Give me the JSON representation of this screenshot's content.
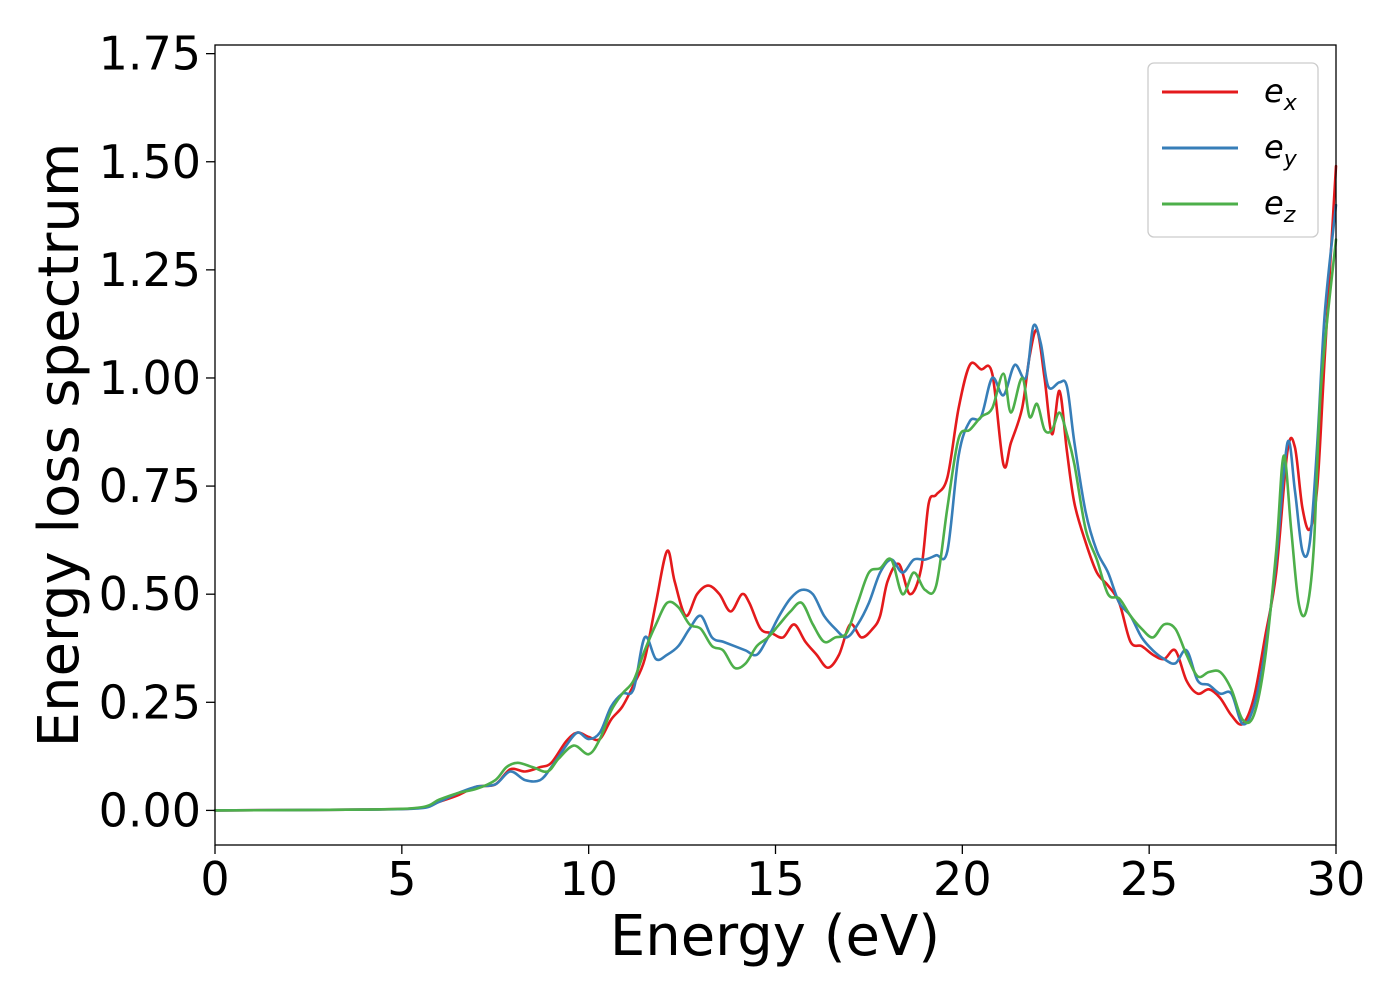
{
  "chart_data": {
    "type": "line",
    "xlabel": "Energy (eV)",
    "ylabel": "Energy loss spectrum",
    "xlim": [
      0,
      30
    ],
    "ylim": [
      -0.08,
      1.77
    ],
    "xticks": [
      0,
      5,
      10,
      15,
      20,
      25,
      30
    ],
    "xtick_labels": [
      "0",
      "5",
      "10",
      "15",
      "20",
      "25",
      "30"
    ],
    "yticks": [
      0.0,
      0.25,
      0.5,
      0.75,
      1.0,
      1.25,
      1.5,
      1.75
    ],
    "ytick_labels": [
      "0.00",
      "0.25",
      "0.50",
      "0.75",
      "1.00",
      "1.25",
      "1.50",
      "1.75"
    ],
    "grid": false,
    "legend_position": "top-right",
    "series": [
      {
        "name": "e_x",
        "legend_base": "e",
        "legend_sub": "x",
        "color": "#e41a1c",
        "x": [
          0,
          4,
          5.5,
          6.0,
          6.5,
          7.0,
          7.5,
          7.9,
          8.3,
          8.7,
          9.0,
          9.4,
          9.7,
          10.0,
          10.3,
          10.6,
          10.9,
          11.2,
          11.5,
          11.8,
          12.1,
          12.3,
          12.6,
          12.9,
          13.2,
          13.5,
          13.8,
          14.1,
          14.3,
          14.6,
          14.9,
          15.2,
          15.5,
          15.8,
          16.1,
          16.4,
          16.7,
          17.0,
          17.3,
          17.6,
          17.8,
          18.0,
          18.3,
          18.6,
          18.9,
          19.1,
          19.3,
          19.6,
          19.9,
          20.2,
          20.5,
          20.8,
          21.1,
          21.3,
          21.6,
          21.8,
          22.0,
          22.2,
          22.4,
          22.6,
          22.8,
          23.0,
          23.3,
          23.6,
          23.9,
          24.2,
          24.5,
          24.8,
          25.1,
          25.4,
          25.7,
          26.0,
          26.3,
          26.6,
          26.9,
          27.2,
          27.5,
          27.8,
          28.1,
          28.4,
          28.7,
          28.9,
          29.1,
          29.3,
          29.5,
          29.7,
          30.0
        ],
        "y": [
          0,
          0.002,
          0.006,
          0.02,
          0.035,
          0.055,
          0.06,
          0.095,
          0.09,
          0.1,
          0.11,
          0.16,
          0.18,
          0.17,
          0.165,
          0.21,
          0.24,
          0.29,
          0.35,
          0.48,
          0.6,
          0.53,
          0.45,
          0.5,
          0.52,
          0.5,
          0.46,
          0.5,
          0.48,
          0.42,
          0.41,
          0.4,
          0.43,
          0.39,
          0.36,
          0.33,
          0.36,
          0.43,
          0.4,
          0.42,
          0.45,
          0.53,
          0.57,
          0.5,
          0.56,
          0.71,
          0.73,
          0.77,
          0.93,
          1.03,
          1.02,
          1.01,
          0.8,
          0.85,
          0.93,
          1.05,
          1.11,
          1.0,
          0.87,
          0.97,
          0.83,
          0.71,
          0.62,
          0.55,
          0.52,
          0.48,
          0.39,
          0.38,
          0.36,
          0.35,
          0.37,
          0.3,
          0.27,
          0.28,
          0.26,
          0.22,
          0.2,
          0.26,
          0.4,
          0.55,
          0.83,
          0.84,
          0.7,
          0.65,
          0.75,
          1.05,
          1.49
        ]
      },
      {
        "name": "e_y",
        "legend_base": "e",
        "legend_sub": "y",
        "color": "#377eb8",
        "x": [
          0,
          4,
          5.5,
          6.0,
          6.5,
          7.0,
          7.5,
          7.9,
          8.3,
          8.7,
          9.0,
          9.4,
          9.7,
          10.0,
          10.3,
          10.6,
          10.9,
          11.2,
          11.5,
          11.8,
          12.1,
          12.4,
          12.7,
          13.0,
          13.3,
          13.6,
          13.9,
          14.2,
          14.5,
          14.8,
          15.1,
          15.4,
          15.7,
          16.0,
          16.3,
          16.6,
          16.9,
          17.2,
          17.5,
          17.8,
          18.1,
          18.4,
          18.7,
          19.0,
          19.3,
          19.6,
          19.9,
          20.2,
          20.5,
          20.8,
          21.1,
          21.4,
          21.7,
          21.9,
          22.1,
          22.3,
          22.6,
          22.8,
          23.0,
          23.3,
          23.6,
          23.9,
          24.2,
          24.5,
          24.8,
          25.1,
          25.4,
          25.7,
          26.0,
          26.3,
          26.6,
          26.9,
          27.2,
          27.5,
          27.8,
          28.1,
          28.4,
          28.7,
          28.9,
          29.1,
          29.3,
          29.5,
          29.7,
          30.0
        ],
        "y": [
          0,
          0.002,
          0.005,
          0.02,
          0.04,
          0.055,
          0.06,
          0.09,
          0.07,
          0.07,
          0.1,
          0.15,
          0.18,
          0.165,
          0.18,
          0.24,
          0.27,
          0.28,
          0.4,
          0.35,
          0.36,
          0.38,
          0.42,
          0.45,
          0.4,
          0.39,
          0.38,
          0.37,
          0.36,
          0.4,
          0.45,
          0.49,
          0.51,
          0.5,
          0.45,
          0.42,
          0.4,
          0.43,
          0.48,
          0.55,
          0.58,
          0.55,
          0.58,
          0.58,
          0.59,
          0.6,
          0.82,
          0.9,
          0.91,
          1.0,
          0.96,
          1.03,
          1.0,
          1.12,
          1.08,
          0.98,
          0.99,
          0.98,
          0.85,
          0.69,
          0.6,
          0.55,
          0.48,
          0.45,
          0.4,
          0.37,
          0.35,
          0.34,
          0.37,
          0.3,
          0.29,
          0.27,
          0.27,
          0.2,
          0.24,
          0.37,
          0.58,
          0.85,
          0.74,
          0.6,
          0.62,
          0.85,
          1.15,
          1.4
        ]
      },
      {
        "name": "e_z",
        "legend_base": "e",
        "legend_sub": "z",
        "color": "#4daf4a",
        "x": [
          0,
          4,
          5.5,
          6.0,
          6.5,
          7.0,
          7.5,
          7.8,
          8.1,
          8.5,
          8.9,
          9.2,
          9.6,
          10.0,
          10.3,
          10.6,
          10.9,
          11.2,
          11.5,
          11.8,
          12.1,
          12.4,
          12.7,
          13.0,
          13.3,
          13.6,
          13.9,
          14.2,
          14.5,
          14.8,
          15.1,
          15.4,
          15.7,
          16.0,
          16.3,
          16.6,
          16.9,
          17.2,
          17.5,
          17.8,
          18.1,
          18.4,
          18.7,
          19.0,
          19.3,
          19.6,
          19.9,
          20.2,
          20.5,
          20.8,
          21.1,
          21.3,
          21.6,
          21.8,
          22.0,
          22.2,
          22.4,
          22.6,
          22.8,
          23.0,
          23.3,
          23.6,
          23.9,
          24.2,
          24.5,
          24.8,
          25.1,
          25.4,
          25.7,
          26.0,
          26.3,
          26.6,
          26.9,
          27.2,
          27.5,
          27.8,
          28.1,
          28.4,
          28.6,
          28.8,
          29.0,
          29.2,
          29.4,
          29.6,
          30.0
        ],
        "y": [
          0,
          0.002,
          0.007,
          0.025,
          0.04,
          0.05,
          0.07,
          0.1,
          0.11,
          0.1,
          0.09,
          0.12,
          0.15,
          0.13,
          0.165,
          0.23,
          0.27,
          0.3,
          0.37,
          0.43,
          0.48,
          0.47,
          0.43,
          0.42,
          0.38,
          0.37,
          0.33,
          0.34,
          0.38,
          0.4,
          0.43,
          0.46,
          0.48,
          0.43,
          0.39,
          0.4,
          0.41,
          0.48,
          0.55,
          0.56,
          0.58,
          0.5,
          0.55,
          0.51,
          0.52,
          0.7,
          0.86,
          0.88,
          0.91,
          0.93,
          1.01,
          0.92,
          1.0,
          0.91,
          0.94,
          0.88,
          0.88,
          0.92,
          0.87,
          0.8,
          0.65,
          0.58,
          0.5,
          0.49,
          0.45,
          0.42,
          0.4,
          0.43,
          0.42,
          0.36,
          0.31,
          0.32,
          0.32,
          0.28,
          0.21,
          0.22,
          0.35,
          0.6,
          0.82,
          0.65,
          0.48,
          0.46,
          0.6,
          0.98,
          1.32
        ]
      }
    ]
  }
}
